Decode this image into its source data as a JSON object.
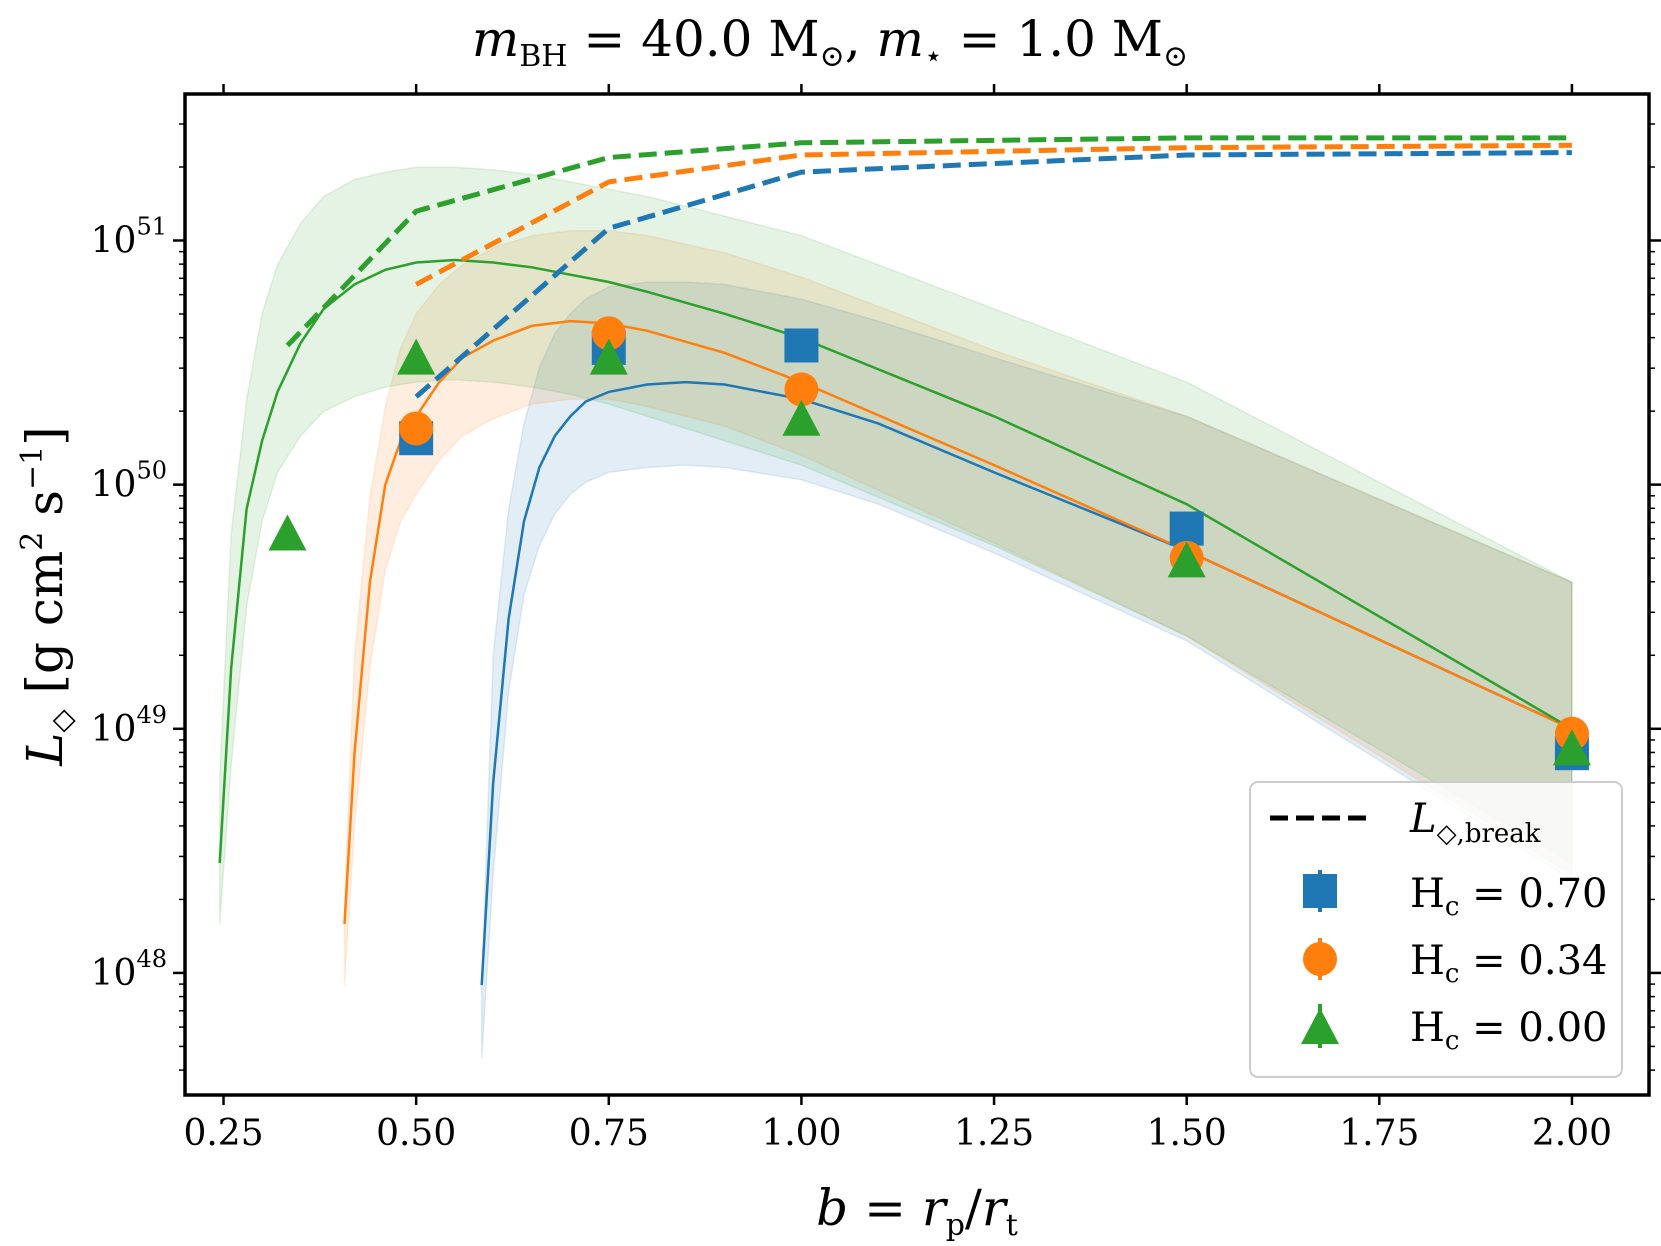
{
  "chart_data": {
    "type": "line",
    "title": "m_BH = 40.0 M⊙, m⋆ = 1.0 M⊙",
    "xlabel": "b = r_p/r_t",
    "ylabel": "L◇ [g cm² s⁻¹]",
    "xlim": [
      0.2,
      2.1
    ],
    "ylim_log10": [
      47.5,
      51.6
    ],
    "yscale": "log",
    "x_ticks": [
      0.25,
      0.5,
      0.75,
      1.0,
      1.25,
      1.5,
      1.75,
      2.0
    ],
    "x_tick_labels": [
      "0.25",
      "0.50",
      "0.75",
      "1.00",
      "1.25",
      "1.50",
      "1.75",
      "2.00"
    ],
    "y_ticks_log10": [
      48,
      49,
      50,
      51
    ],
    "y_tick_labels": [
      "10^48",
      "10^49",
      "10^50",
      "10^51"
    ],
    "grid": false,
    "legend_position": "lower-right",
    "series": [
      {
        "name": "H_c = 0.70",
        "color": "#1f77b4",
        "marker": "square",
        "points": {
          "x": [
            0.5,
            0.75,
            1.0,
            1.5,
            2.0
          ],
          "log10_y": [
            50.19,
            50.56,
            50.57,
            49.82,
            48.9
          ]
        },
        "break_curve": {
          "x": [
            0.5,
            0.75,
            1.0,
            1.5,
            2.0
          ],
          "log10_y": [
            50.36,
            51.05,
            51.28,
            51.35,
            51.36
          ]
        },
        "fit_curve": {
          "x": [
            0.585,
            0.6,
            0.62,
            0.64,
            0.66,
            0.68,
            0.7,
            0.72,
            0.75,
            0.8,
            0.85,
            0.9,
            1.0,
            1.1,
            1.25,
            1.5,
            2.0
          ],
          "log10_y": [
            47.95,
            48.78,
            49.45,
            49.85,
            50.07,
            50.2,
            50.28,
            50.34,
            50.38,
            50.41,
            50.42,
            50.41,
            50.35,
            50.25,
            50.05,
            49.73,
            49.0
          ]
        },
        "band_upper_log10": [
          47.95,
          49.3,
          49.9,
          50.25,
          50.48,
          50.62,
          50.7,
          50.76,
          50.81,
          50.83,
          50.83,
          50.82,
          50.76,
          50.67,
          50.52,
          50.28,
          49.6
        ],
        "band_lower_log10": [
          47.65,
          48.4,
          49.15,
          49.55,
          49.75,
          49.88,
          49.96,
          50.01,
          50.05,
          50.07,
          50.08,
          50.07,
          50.02,
          49.92,
          49.72,
          49.36,
          48.38
        ]
      },
      {
        "name": "H_c = 0.34",
        "color": "#ff7f0e",
        "marker": "circle",
        "points": {
          "x": [
            0.5,
            0.75,
            1.0,
            1.5,
            2.0
          ],
          "log10_y": [
            50.23,
            50.62,
            50.39,
            49.7,
            48.98
          ]
        },
        "break_curve": {
          "x": [
            0.5,
            0.75,
            1.0,
            1.5,
            2.0
          ],
          "log10_y": [
            50.82,
            51.24,
            51.35,
            51.38,
            51.39
          ]
        },
        "fit_curve": {
          "x": [
            0.407,
            0.42,
            0.44,
            0.46,
            0.48,
            0.5,
            0.53,
            0.56,
            0.6,
            0.65,
            0.7,
            0.75,
            0.8,
            0.9,
            1.0,
            1.25,
            1.5,
            2.0
          ],
          "log10_y": [
            48.2,
            48.9,
            49.6,
            50.0,
            50.18,
            50.28,
            50.42,
            50.52,
            50.59,
            50.65,
            50.67,
            50.66,
            50.63,
            50.54,
            50.42,
            50.08,
            49.73,
            49.0
          ]
        },
        "band_upper_log10": [
          48.3,
          49.3,
          49.95,
          50.32,
          50.56,
          50.7,
          50.82,
          50.9,
          50.97,
          51.02,
          51.04,
          51.04,
          51.02,
          50.95,
          50.85,
          50.55,
          50.28,
          49.6
        ],
        "band_lower_log10": [
          47.95,
          48.6,
          49.25,
          49.65,
          49.85,
          49.96,
          50.1,
          50.2,
          50.27,
          50.33,
          50.35,
          50.35,
          50.32,
          50.24,
          50.12,
          49.76,
          49.38,
          48.4
        ]
      },
      {
        "name": "H_c = 0.00",
        "color": "#2ca02c",
        "marker": "triangle",
        "points": {
          "x": [
            0.333,
            0.5,
            0.75,
            1.0,
            1.5,
            2.0
          ],
          "log10_y": [
            49.8,
            50.52,
            50.52,
            50.27,
            49.69,
            48.92
          ]
        },
        "break_curve": {
          "x": [
            0.333,
            0.5,
            0.75,
            1.0,
            1.5,
            2.0
          ],
          "log10_y": [
            50.57,
            51.12,
            51.34,
            51.4,
            51.42,
            51.42
          ]
        },
        "fit_curve": {
          "x": [
            0.245,
            0.26,
            0.28,
            0.3,
            0.32,
            0.35,
            0.38,
            0.42,
            0.46,
            0.5,
            0.55,
            0.6,
            0.65,
            0.7,
            0.75,
            0.8,
            0.9,
            1.0,
            1.25,
            1.5,
            2.0
          ],
          "log10_y": [
            48.45,
            49.25,
            49.9,
            50.18,
            50.38,
            50.58,
            50.72,
            50.82,
            50.88,
            50.91,
            50.92,
            50.91,
            50.89,
            50.86,
            50.83,
            50.79,
            50.7,
            50.6,
            50.28,
            49.92,
            49.0
          ]
        },
        "band_upper_log10": [
          48.8,
          49.8,
          50.35,
          50.7,
          50.9,
          51.07,
          51.18,
          51.25,
          51.28,
          51.3,
          51.3,
          51.29,
          51.27,
          51.24,
          51.21,
          51.18,
          51.1,
          51.02,
          50.72,
          50.42,
          49.6
        ],
        "band_lower_log10": [
          48.2,
          48.85,
          49.5,
          49.85,
          50.05,
          50.2,
          50.3,
          50.36,
          50.4,
          50.42,
          50.43,
          50.42,
          50.4,
          50.37,
          50.33,
          50.28,
          50.18,
          50.08,
          49.75,
          49.38,
          48.45
        ]
      }
    ],
    "legend": {
      "entries": [
        {
          "label": "L◇,break",
          "style": "dashed-line",
          "color": "#000000"
        },
        {
          "label": "H_c = 0.70",
          "style": "square",
          "color": "#1f77b4"
        },
        {
          "label": "H_c = 0.34",
          "style": "circle",
          "color": "#ff7f0e"
        },
        {
          "label": "H_c = 0.00",
          "style": "triangle",
          "color": "#2ca02c"
        }
      ]
    }
  }
}
